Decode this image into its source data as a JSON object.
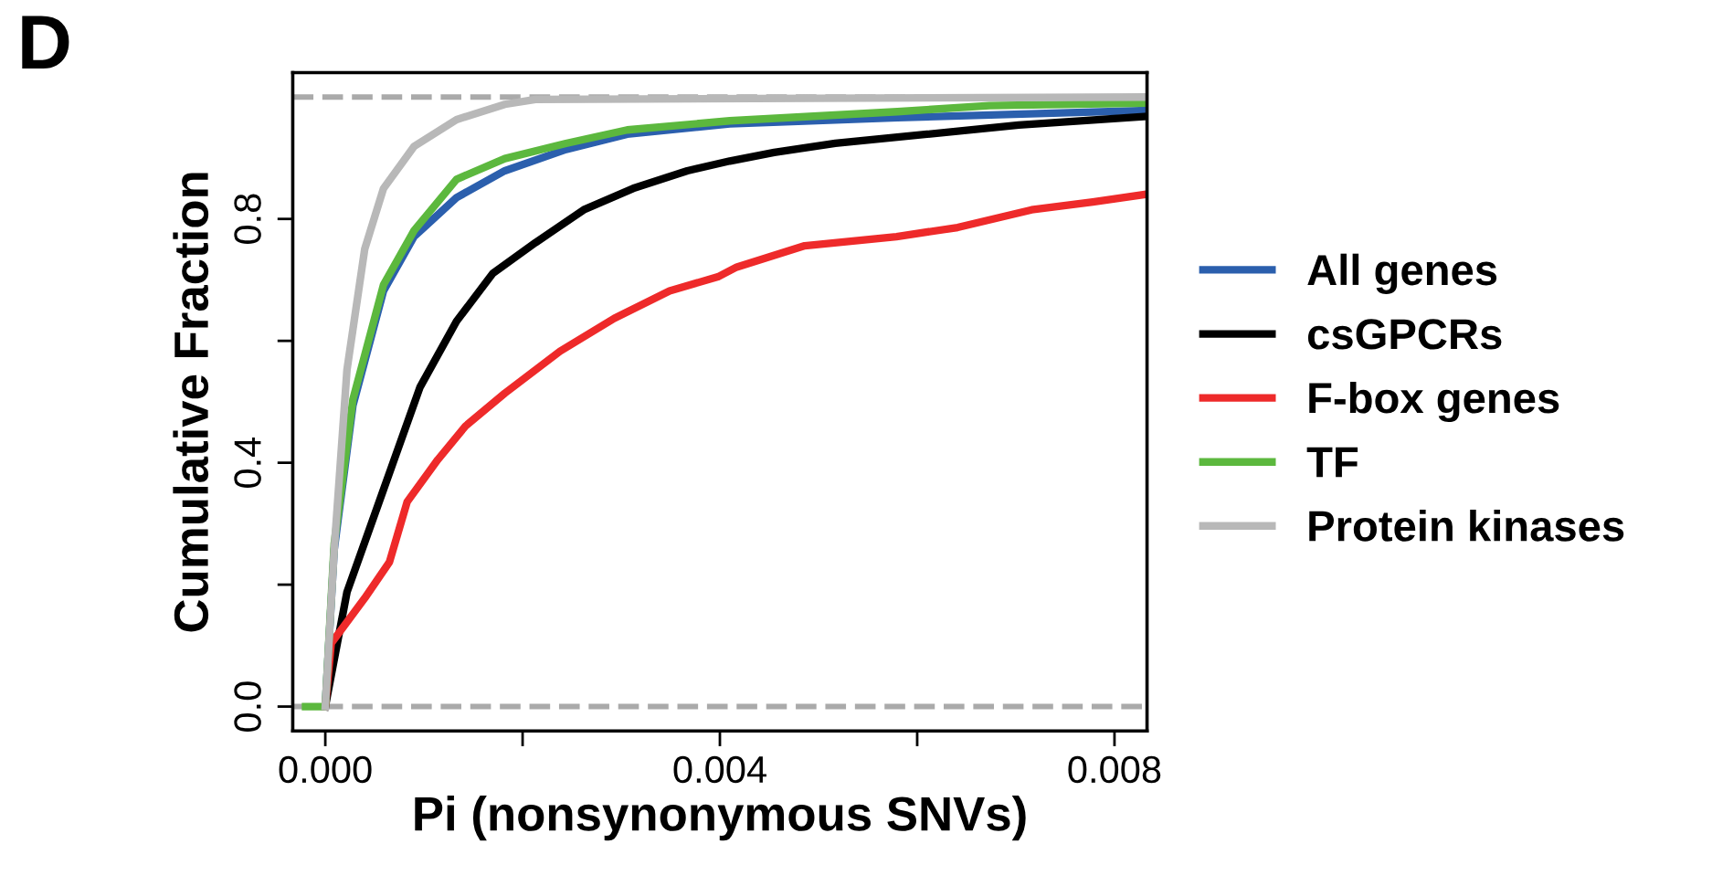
{
  "chart_data": {
    "type": "line",
    "xlabel": "Pi (nonsynonymous SNVs)",
    "ylabel": "Cumulative Fraction",
    "annotations": [
      "D"
    ],
    "xlim": [
      -0.00033,
      0.00833
    ],
    "ylim": [
      -0.04,
      1.04
    ],
    "xticks": [
      {
        "value": 0,
        "label": "0.000"
      },
      {
        "value": 0.002,
        "label": null
      },
      0.004,
      {
        "value": 0.006,
        "label": null
      },
      0.008
    ],
    "yticks": [
      {
        "value": 0,
        "label": "0.0"
      },
      {
        "value": 0.2,
        "label": null
      },
      0.4,
      {
        "value": 0.6,
        "label": null
      },
      0.8
    ],
    "grid": false,
    "legend": "right",
    "marker": "none",
    "line_style": "solid",
    "ref_lines": [
      {
        "axis": "y",
        "value": 0,
        "color": "#aaaaaa",
        "line_style": "dashed"
      },
      {
        "axis": "y",
        "value": 1,
        "color": "#aaaaaa",
        "line_style": "dashed"
      }
    ],
    "series": [
      {
        "name": "All genes",
        "color": "#2b5fad",
        "x": [
          0,
          9e-05,
          0.00028,
          0.00059,
          0.0009,
          0.00133,
          0.00182,
          0.00244,
          0.00306,
          0.0041,
          0.0058,
          0.0083
        ],
        "values": [
          0,
          0.257,
          0.494,
          0.682,
          0.771,
          0.835,
          0.879,
          0.914,
          0.939,
          0.956,
          0.966,
          0.978
        ]
      },
      {
        "name": "csGPCRs",
        "color": "#000000",
        "x": [
          0,
          0.00022,
          0.00059,
          0.00096,
          0.00133,
          0.0017,
          0.00213,
          0.00262,
          0.00312,
          0.00367,
          0.0041,
          0.00455,
          0.00517,
          0.0061,
          0.00703,
          0.0083
        ],
        "values": [
          0,
          0.188,
          0.356,
          0.524,
          0.632,
          0.711,
          0.761,
          0.815,
          0.85,
          0.879,
          0.895,
          0.909,
          0.924,
          0.939,
          0.954,
          0.968
        ]
      },
      {
        "name": "F-box genes",
        "color": "#ee2a2a",
        "x": [
          0,
          6e-05,
          0.0004,
          0.00065,
          0.00083,
          0.00114,
          0.00142,
          0.00182,
          0.00238,
          0.00293,
          0.00349,
          0.00398,
          0.00417,
          0.00486,
          0.00579,
          0.00641,
          0.00716,
          0.00778,
          0.0083
        ],
        "values": [
          0,
          0.104,
          0.178,
          0.237,
          0.336,
          0.405,
          0.46,
          0.514,
          0.583,
          0.637,
          0.682,
          0.705,
          0.721,
          0.756,
          0.771,
          0.786,
          0.815,
          0.828,
          0.84
        ]
      },
      {
        "name": "TF",
        "color": "#5cb83e",
        "x": [
          -0.0002,
          0,
          9e-05,
          0.00028,
          0.00059,
          0.0009,
          0.00133,
          0.00182,
          0.00244,
          0.00306,
          0.0041,
          0.0058,
          0.00673,
          0.0083
        ],
        "values": [
          0,
          0,
          0.267,
          0.504,
          0.692,
          0.781,
          0.865,
          0.899,
          0.924,
          0.946,
          0.961,
          0.976,
          0.986,
          0.99
        ]
      },
      {
        "name": "Protein kinases",
        "color": "#b8b8b8",
        "x": [
          0,
          9e-05,
          0.00022,
          0.0004,
          0.00059,
          0.0009,
          0.00133,
          0.00182,
          0.00213,
          0.0083
        ],
        "values": [
          0,
          0.257,
          0.553,
          0.751,
          0.85,
          0.919,
          0.963,
          0.988,
          0.996,
          1.0
        ]
      }
    ]
  }
}
